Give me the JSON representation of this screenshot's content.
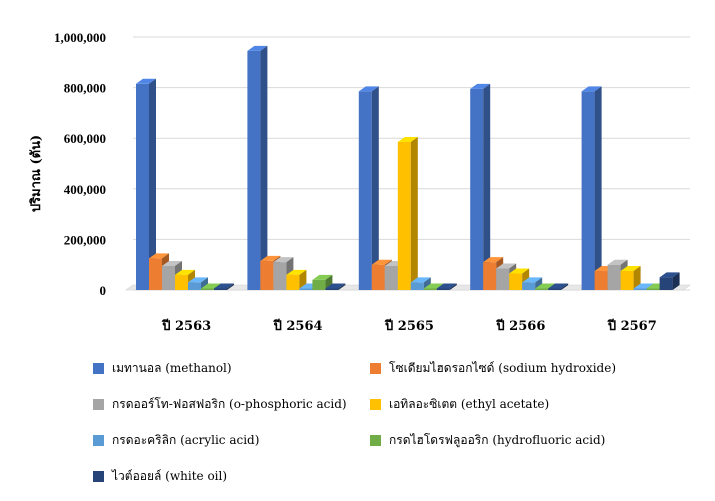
{
  "chart_data": {
    "type": "bar",
    "ylabel": "ปริมาณ (ตัน)",
    "ylim": [
      0,
      1000000
    ],
    "yticks": [
      0,
      200000,
      400000,
      600000,
      800000,
      1000000
    ],
    "ytick_labels": [
      "0",
      "200,000",
      "400,000",
      "600,000",
      "800,000",
      "1,000,000"
    ],
    "grid": true,
    "legend_position": "bottom",
    "categories": [
      "ปี 2563",
      "ปี 2564",
      "ปี 2565",
      "ปี 2566",
      "ปี 2567"
    ],
    "series": [
      {
        "name": "เมทานอล (methanol)",
        "color": "#4472C4",
        "values": [
          815000,
          945000,
          785000,
          795000,
          785000
        ]
      },
      {
        "name": "โซเดียมไฮดรอกไซด์ (sodium hydroxide)",
        "color": "#ED7D31",
        "values": [
          125000,
          115000,
          100000,
          110000,
          75000
        ]
      },
      {
        "name": "กรดออร์โท-ฟอสฟอริก (o-phosphoric acid)",
        "color": "#A5A5A5",
        "values": [
          95000,
          110000,
          95000,
          85000,
          100000
        ]
      },
      {
        "name": "เอทิลอะซิเตต (ethyl acetate)",
        "color": "#FFC000",
        "values": [
          60000,
          60000,
          585000,
          65000,
          75000
        ]
      },
      {
        "name": "กรดอะคริลิก (acrylic acid)",
        "color": "#5B9BD5",
        "values": [
          30000,
          5000,
          30000,
          30000,
          5000
        ]
      },
      {
        "name": "กรดไฮโดรฟลูออริก (hydrofluoric acid)",
        "color": "#70AD47",
        "values": [
          5000,
          40000,
          5000,
          5000,
          5000
        ]
      },
      {
        "name": "ไวต์ออยล์ (white oil)",
        "color": "#264478",
        "values": [
          3000,
          3000,
          3000,
          3000,
          50000
        ]
      }
    ]
  }
}
